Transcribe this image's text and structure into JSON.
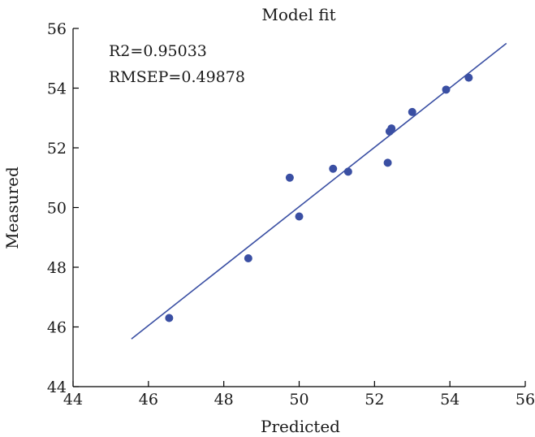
{
  "chart_data": {
    "type": "scatter",
    "title": "Model fit",
    "xlabel": "Predicted",
    "ylabel": "Measured",
    "xlim": [
      44,
      56
    ],
    "ylim": [
      44,
      56
    ],
    "xticks": [
      44,
      46,
      48,
      50,
      52,
      54,
      56
    ],
    "yticks": [
      44,
      46,
      48,
      50,
      52,
      54,
      56
    ],
    "grid": false,
    "legend": "none",
    "annotations": [
      "R2=0.95033",
      "RMSEP=0.49878"
    ],
    "point_color": "#3a4fa3",
    "line_color": "#3a4fa3",
    "series": [
      {
        "points": [
          {
            "x": 46.55,
            "y": 46.3
          },
          {
            "x": 48.65,
            "y": 48.3
          },
          {
            "x": 49.75,
            "y": 51.0
          },
          {
            "x": 50.0,
            "y": 49.7
          },
          {
            "x": 50.9,
            "y": 51.3
          },
          {
            "x": 51.3,
            "y": 51.2
          },
          {
            "x": 52.35,
            "y": 51.5
          },
          {
            "x": 52.4,
            "y": 52.55
          },
          {
            "x": 52.45,
            "y": 52.65
          },
          {
            "x": 53.0,
            "y": 53.2
          },
          {
            "x": 53.9,
            "y": 53.95
          },
          {
            "x": 54.5,
            "y": 54.35
          }
        ]
      }
    ],
    "fit_line": {
      "x": [
        45.55,
        55.5
      ],
      "y": [
        45.6,
        55.5
      ]
    }
  }
}
